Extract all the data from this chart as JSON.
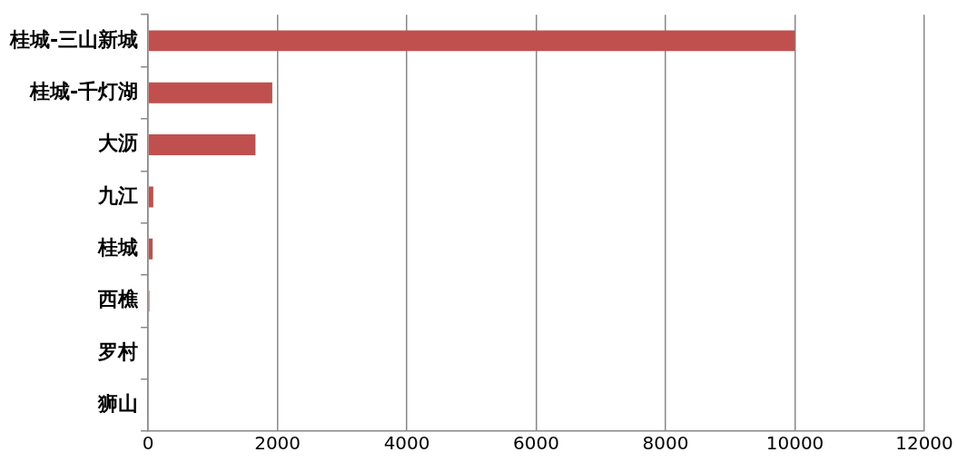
{
  "chart_data": {
    "type": "bar",
    "orientation": "horizontal",
    "categories": [
      "桂城-三山新城",
      "桂城-千灯湖",
      "大沥",
      "九江",
      "桂城",
      "西樵",
      "罗村",
      "狮山"
    ],
    "values": [
      10000,
      1920,
      1660,
      80,
      70,
      20,
      10,
      10
    ],
    "color": "#c0504d",
    "xlim": [
      0,
      12000
    ],
    "xticks": [
      0,
      2000,
      4000,
      6000,
      8000,
      10000,
      12000
    ],
    "grid": "x",
    "legend": false
  }
}
